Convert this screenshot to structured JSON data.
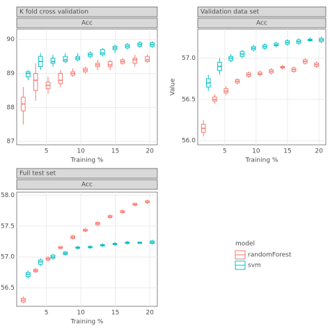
{
  "chart_data": [
    {
      "type": "box",
      "title": "K fold cross validation",
      "subtitle": "Acc",
      "xlabel": "Training %",
      "grid": true,
      "x": [
        2,
        3.8,
        5.6,
        7.4,
        9.2,
        11,
        12.8,
        14.6,
        16.4,
        18.2,
        20
      ],
      "xlim": [
        0.7,
        21.1
      ],
      "xticks": [
        5,
        10,
        15,
        20
      ],
      "ylim": [
        86.9,
        90.3
      ],
      "yticks": [
        87,
        88,
        89,
        90
      ],
      "series": [
        {
          "name": "randomForest",
          "color": "#f8766d",
          "boxes": [
            [
              87.5,
              87.9,
              88.1,
              88.3,
              88.6
            ],
            [
              88.2,
              88.5,
              88.8,
              89.0,
              89.3
            ],
            [
              88.4,
              88.55,
              88.65,
              88.75,
              88.9
            ],
            [
              88.6,
              88.7,
              88.8,
              89.0,
              89.1
            ],
            [
              88.9,
              88.95,
              89.0,
              89.05,
              89.15
            ],
            [
              89.0,
              89.05,
              89.1,
              89.15,
              89.2
            ],
            [
              89.1,
              89.2,
              89.25,
              89.3,
              89.4
            ],
            [
              89.1,
              89.2,
              89.25,
              89.35,
              89.4
            ],
            [
              89.25,
              89.3,
              89.35,
              89.4,
              89.45
            ],
            [
              89.2,
              89.3,
              89.4,
              89.45,
              89.55
            ],
            [
              89.3,
              89.35,
              89.4,
              89.5,
              89.55
            ]
          ]
        },
        {
          "name": "svm",
          "color": "#00bfc4",
          "boxes": [
            [
              88.8,
              88.9,
              89.0,
              89.05,
              89.1
            ],
            [
              89.1,
              89.2,
              89.35,
              89.5,
              89.6
            ],
            [
              89.2,
              89.3,
              89.35,
              89.45,
              89.55
            ],
            [
              89.3,
              89.35,
              89.4,
              89.5,
              89.6
            ],
            [
              89.35,
              89.4,
              89.45,
              89.5,
              89.6
            ],
            [
              89.45,
              89.5,
              89.55,
              89.6,
              89.65
            ],
            [
              89.5,
              89.55,
              89.6,
              89.7,
              89.75
            ],
            [
              89.6,
              89.7,
              89.75,
              89.8,
              89.85
            ],
            [
              89.7,
              89.75,
              89.8,
              89.85,
              89.9
            ],
            [
              89.75,
              89.8,
              89.85,
              89.9,
              89.95
            ],
            [
              89.75,
              89.8,
              89.85,
              89.9,
              89.95
            ]
          ]
        }
      ]
    },
    {
      "type": "box",
      "title": "Validation data set",
      "subtitle": "Acc",
      "xlabel": "Training %",
      "ylabel": "Value",
      "grid": true,
      "x": [
        2,
        3.8,
        5.6,
        7.4,
        9.2,
        11,
        12.8,
        14.6,
        16.4,
        18.2,
        20
      ],
      "xlim": [
        0.7,
        21.1
      ],
      "xticks": [
        5,
        10,
        15,
        20
      ],
      "ylim": [
        55.95,
        57.35
      ],
      "yticks": [
        {
          "value": 56,
          "label": "56.0"
        },
        56.5,
        {
          "value": 57,
          "label": "57.0"
        }
      ],
      "series": [
        {
          "name": "randomForest",
          "color": "#f8766d",
          "boxes": [
            [
              56.05,
              56.1,
              56.15,
              56.2,
              56.25
            ],
            [
              56.45,
              56.48,
              56.5,
              56.53,
              56.56
            ],
            [
              56.55,
              56.58,
              56.6,
              56.63,
              56.66
            ],
            [
              56.68,
              56.7,
              56.72,
              56.74,
              56.76
            ],
            [
              56.76,
              56.78,
              56.8,
              56.82,
              56.84
            ],
            [
              56.78,
              56.8,
              56.81,
              56.83,
              56.85
            ],
            [
              56.8,
              56.82,
              56.84,
              56.86,
              56.88
            ],
            [
              56.86,
              56.88,
              56.89,
              56.9,
              56.92
            ],
            [
              56.82,
              56.84,
              56.86,
              56.88,
              56.9
            ],
            [
              56.92,
              56.94,
              56.96,
              56.98,
              57.0
            ],
            [
              56.88,
              56.9,
              56.92,
              56.94,
              56.96
            ]
          ]
        },
        {
          "name": "svm",
          "color": "#00bfc4",
          "boxes": [
            [
              56.6,
              56.65,
              56.7,
              56.75,
              56.8
            ],
            [
              56.8,
              56.85,
              56.9,
              56.95,
              57.0
            ],
            [
              56.95,
              56.97,
              57.0,
              57.02,
              57.05
            ],
            [
              57.0,
              57.02,
              57.05,
              57.08,
              57.1
            ],
            [
              57.08,
              57.1,
              57.12,
              57.14,
              57.16
            ],
            [
              57.1,
              57.12,
              57.14,
              57.16,
              57.18
            ],
            [
              57.13,
              57.15,
              57.16,
              57.18,
              57.2
            ],
            [
              57.15,
              57.17,
              57.19,
              57.21,
              57.23
            ],
            [
              57.16,
              57.18,
              57.2,
              57.22,
              57.24
            ],
            [
              57.2,
              57.21,
              57.22,
              57.23,
              57.25
            ],
            [
              57.18,
              57.2,
              57.22,
              57.24,
              57.26
            ]
          ]
        }
      ]
    },
    {
      "type": "box",
      "title": "Full test set",
      "subtitle": "Acc",
      "xlabel": "Training %",
      "grid": true,
      "legend_title": "model",
      "x": [
        2,
        3.8,
        5.6,
        7.4,
        9.2,
        11,
        12.8,
        14.6,
        16.4,
        18.2,
        20
      ],
      "xlim": [
        0.7,
        21.1
      ],
      "xticks": [
        5,
        10,
        15,
        20
      ],
      "ylim": [
        56.2,
        58.05
      ],
      "yticks": [
        56.5,
        {
          "value": 57,
          "label": "57.0"
        },
        57.5,
        {
          "value": 58,
          "label": "58.0"
        }
      ],
      "series": [
        {
          "name": "randomForest",
          "color": "#f8766d",
          "boxes": [
            [
              56.25,
              56.27,
              56.3,
              56.33,
              56.36
            ],
            [
              56.74,
              56.76,
              56.78,
              56.8,
              56.82
            ],
            [
              56.93,
              56.95,
              56.97,
              56.99,
              57.01
            ],
            [
              57.12,
              57.14,
              57.15,
              57.17,
              57.18
            ],
            [
              57.28,
              57.3,
              57.32,
              57.34,
              57.36
            ],
            [
              57.4,
              57.42,
              57.43,
              57.45,
              57.47
            ],
            [
              57.5,
              57.52,
              57.54,
              57.56,
              57.58
            ],
            [
              57.62,
              57.64,
              57.65,
              57.67,
              57.69
            ],
            [
              57.7,
              57.72,
              57.73,
              57.75,
              57.77
            ],
            [
              57.82,
              57.84,
              57.85,
              57.87,
              57.88
            ],
            [
              57.86,
              57.88,
              57.89,
              57.91,
              57.93
            ]
          ]
        },
        {
          "name": "svm",
          "color": "#00bfc4",
          "boxes": [
            [
              56.65,
              56.68,
              56.72,
              56.75,
              56.78
            ],
            [
              56.85,
              56.88,
              56.92,
              56.95,
              56.98
            ],
            [
              56.95,
              56.98,
              57.0,
              57.03,
              57.05
            ],
            [
              57.02,
              57.04,
              57.06,
              57.08,
              57.1
            ],
            [
              57.12,
              57.14,
              57.15,
              57.16,
              57.18
            ],
            [
              57.13,
              57.15,
              57.16,
              57.17,
              57.19
            ],
            [
              57.16,
              57.18,
              57.19,
              57.2,
              57.22
            ],
            [
              57.18,
              57.2,
              57.21,
              57.22,
              57.24
            ],
            [
              57.2,
              57.22,
              57.23,
              57.24,
              57.26
            ],
            [
              57.21,
              57.22,
              57.23,
              57.24,
              57.25
            ],
            [
              57.2,
              57.22,
              57.24,
              57.26,
              57.28
            ]
          ]
        }
      ]
    }
  ]
}
